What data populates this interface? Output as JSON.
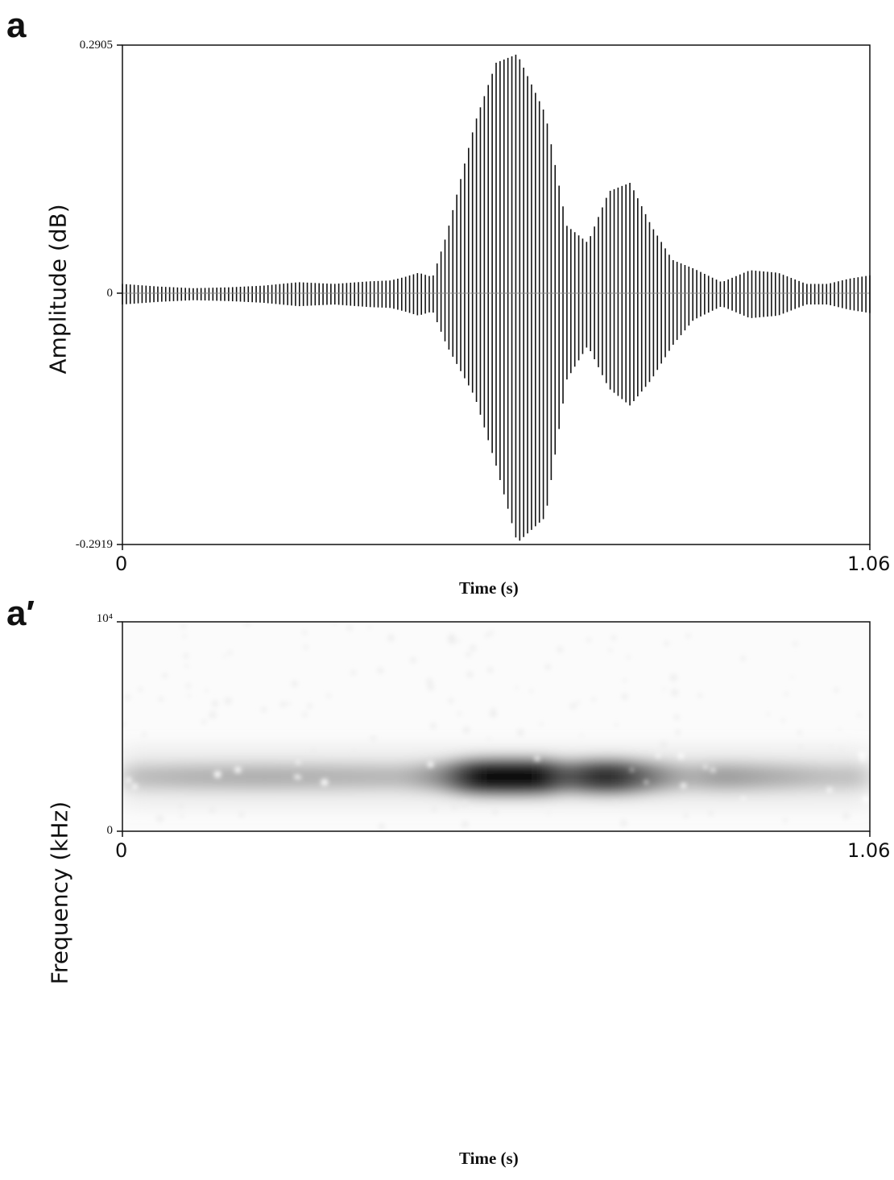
{
  "chart_data": [
    {
      "panel": "a",
      "type": "line",
      "ylabel": "Amplitude (dB)",
      "xlabel": "Time (s)",
      "xlim": [
        0,
        1.06
      ],
      "ylim": [
        -0.2919,
        0.2905
      ],
      "x_ticks": [
        "0",
        "1.06"
      ],
      "y_ticks": [
        "0.2905",
        "0",
        "-0.2919"
      ],
      "envelope": {
        "x": [
          0,
          0.05,
          0.1,
          0.15,
          0.2,
          0.25,
          0.3,
          0.35,
          0.38,
          0.4,
          0.42,
          0.44,
          0.46,
          0.5,
          0.53,
          0.56,
          0.6,
          0.63,
          0.66,
          0.69,
          0.72,
          0.75,
          0.78,
          0.81,
          0.85,
          0.89,
          0.93,
          0.97,
          1.0,
          1.03,
          1.06
        ],
        "upper": [
          0.012,
          0.009,
          0.007,
          0.008,
          0.01,
          0.014,
          0.012,
          0.015,
          0.016,
          0.02,
          0.025,
          0.02,
          0.07,
          0.2,
          0.27,
          0.28,
          0.21,
          0.08,
          0.06,
          0.12,
          0.13,
          0.08,
          0.04,
          0.03,
          0.014,
          0.028,
          0.025,
          0.012,
          0.012,
          0.018,
          0.022
        ],
        "lower": [
          -0.012,
          -0.009,
          -0.007,
          -0.008,
          -0.01,
          -0.014,
          -0.012,
          -0.015,
          -0.016,
          -0.02,
          -0.025,
          -0.02,
          -0.06,
          -0.12,
          -0.2,
          -0.29,
          -0.26,
          -0.1,
          -0.06,
          -0.11,
          -0.13,
          -0.1,
          -0.06,
          -0.03,
          -0.014,
          -0.028,
          -0.025,
          -0.012,
          -0.012,
          -0.018,
          -0.022
        ]
      }
    },
    {
      "panel": "a′",
      "type": "heatmap",
      "ylabel": "Frequency (kHz)",
      "xlabel": "Time (s)",
      "xlim": [
        0,
        1.06
      ],
      "ylim": [
        0,
        10000
      ],
      "x_ticks": [
        "0",
        "1.06"
      ],
      "y_ticks": [
        "10⁴",
        "0"
      ],
      "colormap": "white-to-black",
      "band_center_frequency": 2600,
      "band_intensity": {
        "x": [
          0,
          0.1,
          0.2,
          0.3,
          0.4,
          0.45,
          0.5,
          0.55,
          0.6,
          0.63,
          0.66,
          0.7,
          0.75,
          0.8,
          0.85,
          0.9,
          0.95,
          1.0,
          1.06
        ],
        "level": [
          0.25,
          0.3,
          0.32,
          0.3,
          0.28,
          0.45,
          0.95,
          1.0,
          0.95,
          0.6,
          0.8,
          0.85,
          0.55,
          0.3,
          0.4,
          0.35,
          0.3,
          0.25,
          0.25
        ]
      }
    }
  ],
  "labels": {
    "panel_a": "a",
    "panel_a2": "a′"
  }
}
